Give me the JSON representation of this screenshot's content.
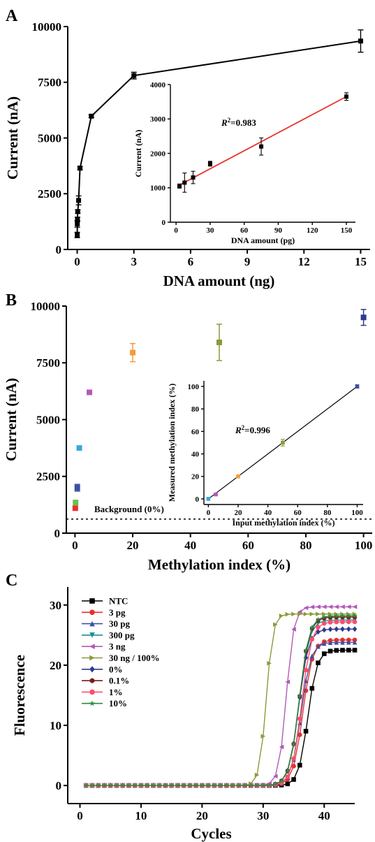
{
  "panels": {
    "a": "A",
    "b": "B",
    "c": "C"
  },
  "chart_data": [
    {
      "id": "A-main",
      "type": "line",
      "xlabel": "DNA amount (ng)",
      "ylabel": "Current (nA)",
      "xlim": [
        -0.5,
        15.5
      ],
      "ylim": [
        0,
        10000
      ],
      "xticks": [
        0,
        3,
        6,
        9,
        12,
        15
      ],
      "yticks": [
        0,
        2500,
        5000,
        7500,
        10000
      ],
      "series": [
        {
          "color": "#000000",
          "points": [
            {
              "x": 0.003,
              "y": 650,
              "err": 120
            },
            {
              "x": 0.006,
              "y": 1150,
              "err": 150
            },
            {
              "x": 0.015,
              "y": 1350,
              "err": 100
            },
            {
              "x": 0.03,
              "y": 1700,
              "err": 80
            },
            {
              "x": 0.075,
              "y": 2200,
              "err": 200
            },
            {
              "x": 0.15,
              "y": 3650,
              "err": 70
            },
            {
              "x": 0.75,
              "y": 5980,
              "err": 60
            },
            {
              "x": 3,
              "y": 7800,
              "err": 150
            },
            {
              "x": 15,
              "y": 9350,
              "err": 500
            }
          ]
        }
      ]
    },
    {
      "id": "A-inset",
      "type": "scatter",
      "xlabel": "DNA amount (pg)",
      "ylabel": "Current (nA)",
      "xlim": [
        -5,
        158
      ],
      "ylim": [
        0,
        4000
      ],
      "xticks": [
        0,
        30,
        60,
        90,
        120,
        150
      ],
      "yticks": [
        0,
        1000,
        2000,
        3000,
        4000
      ],
      "annotation": {
        "r2_label": "R",
        "r2_sup": "2",
        "r2_value": "=0.983"
      },
      "fit": {
        "color": "#e8302a",
        "x": [
          3,
          150
        ],
        "y": [
          1080,
          3650
        ]
      },
      "series": [
        {
          "color": "#000000",
          "points": [
            {
              "x": 3,
              "y": 1050,
              "err": 60
            },
            {
              "x": 7.5,
              "y": 1150,
              "err": 280
            },
            {
              "x": 15,
              "y": 1300,
              "err": 180
            },
            {
              "x": 30,
              "y": 1700,
              "err": 70
            },
            {
              "x": 75,
              "y": 2200,
              "err": 250
            },
            {
              "x": 150,
              "y": 3650,
              "err": 110
            }
          ]
        }
      ]
    },
    {
      "id": "B-main",
      "type": "scatter",
      "xlabel": "Methylation index (%)",
      "ylabel": "Current (nA)",
      "xlim": [
        -3,
        103
      ],
      "ylim": [
        0,
        10000
      ],
      "xticks": [
        0,
        20,
        40,
        60,
        80,
        100
      ],
      "yticks": [
        0,
        2500,
        5000,
        7500,
        10000
      ],
      "background": {
        "label": "Background (0%)",
        "y": 620
      },
      "points": [
        {
          "x": 0.1,
          "y": 1100,
          "err": 0,
          "color": "#e8302a"
        },
        {
          "x": 0.2,
          "y": 1350,
          "err": 0,
          "color": "#6bbf4e"
        },
        {
          "x": 0.8,
          "y": 2000,
          "err": 150,
          "color": "#3e4fa3"
        },
        {
          "x": 1.5,
          "y": 3750,
          "err": 0,
          "color": "#3aa6e0"
        },
        {
          "x": 5,
          "y": 6200,
          "err": 0,
          "color": "#b259b8"
        },
        {
          "x": 20,
          "y": 7950,
          "err": 400,
          "color": "#f59a3c"
        },
        {
          "x": 50,
          "y": 8400,
          "err": 800,
          "color": "#8c9a3a"
        },
        {
          "x": 100,
          "y": 9500,
          "err": 350,
          "color": "#2f3a8f"
        }
      ]
    },
    {
      "id": "B-inset",
      "type": "scatter",
      "xlabel": "Input methylation index (%)",
      "ylabel": "Measured methylation index (%)",
      "xlim": [
        -3,
        104
      ],
      "ylim": [
        -5,
        105
      ],
      "xticks": [
        0,
        20,
        40,
        60,
        80,
        100
      ],
      "yticks": [
        0,
        20,
        40,
        60,
        80,
        100
      ],
      "annotation": {
        "r2_label": "R",
        "r2_sup": "2",
        "r2_value": "=0.996"
      },
      "fit": {
        "color": "#000000",
        "x": [
          0,
          100
        ],
        "y": [
          0,
          100
        ]
      },
      "points": [
        {
          "x": 0,
          "y": 0,
          "err": 0,
          "color": "#3aa6e0"
        },
        {
          "x": 5,
          "y": 4,
          "err": 0,
          "color": "#b259b8"
        },
        {
          "x": 20,
          "y": 20,
          "err": 0,
          "color": "#f59a3c"
        },
        {
          "x": 50,
          "y": 50,
          "err": 3,
          "color": "#8c9a3a"
        },
        {
          "x": 100,
          "y": 100,
          "err": 1.5,
          "color": "#3e4fa3"
        }
      ]
    },
    {
      "id": "C-main",
      "type": "line",
      "xlabel": "Cycles",
      "ylabel": "Fluorescence",
      "xlim": [
        -2,
        45
      ],
      "ylim": [
        -3,
        33
      ],
      "xticks": [
        0,
        10,
        20,
        30,
        40
      ],
      "yticks": [
        0,
        10,
        20,
        30
      ],
      "series": [
        {
          "name": "NTC",
          "color": "#000000",
          "marker": "square",
          "plateau": 22.5,
          "mid": 37.3,
          "slope": 0.75
        },
        {
          "name": "3 pg",
          "color": "#e8302a",
          "marker": "circle",
          "plateau": 24.2,
          "mid": 36.5,
          "slope": 0.8
        },
        {
          "name": "30 pg",
          "color": "#3e4fa3",
          "marker": "triangle-up",
          "plateau": 23.8,
          "mid": 36.2,
          "slope": 0.8
        },
        {
          "name": "300 pg",
          "color": "#1a8f8f",
          "marker": "triangle-down",
          "plateau": 27.5,
          "mid": 35.9,
          "slope": 0.8
        },
        {
          "name": "3 ng",
          "color": "#b259b8",
          "marker": "triangle-left",
          "plateau": 29.7,
          "mid": 33.8,
          "slope": 0.62
        },
        {
          "name": "30 ng / 100%",
          "color": "#8c9a3a",
          "marker": "triangle-right",
          "plateau": 28.5,
          "mid": 30.5,
          "slope": 0.55
        },
        {
          "name": "0%",
          "color": "#2f3a8f",
          "marker": "diamond",
          "plateau": 26.0,
          "mid": 35.8,
          "slope": 0.8
        },
        {
          "name": "0.1%",
          "color": "#7a1a1a",
          "marker": "hexagon",
          "plateau": 28.0,
          "mid": 35.9,
          "slope": 0.8
        },
        {
          "name": "1%",
          "color": "#ff4d6d",
          "marker": "circle",
          "plateau": 27.2,
          "mid": 36.3,
          "slope": 0.8
        },
        {
          "name": "10%",
          "color": "#2e8b3e",
          "marker": "star",
          "plateau": 28.2,
          "mid": 35.9,
          "slope": 0.8
        }
      ],
      "x_range": [
        1,
        45
      ]
    }
  ]
}
